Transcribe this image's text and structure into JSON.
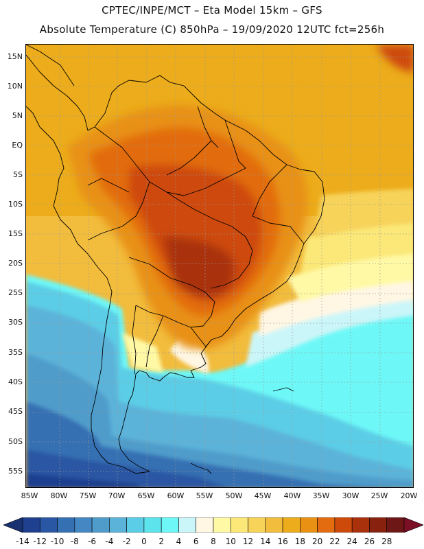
{
  "header": {
    "line1": "CPTEC/INPE/MCT –  Eta Model 15km – GFS",
    "line2": "Absolute Temperature (C) 850hPa – 19/09/2020 12UTC fct=256h"
  },
  "map": {
    "lat_labels": [
      "15N",
      "10N",
      "5N",
      "EQ",
      "5S",
      "10S",
      "15S",
      "20S",
      "25S",
      "30S",
      "35S",
      "40S",
      "45S",
      "50S",
      "55S"
    ],
    "lon_labels": [
      "85W",
      "80W",
      "75W",
      "70W",
      "65W",
      "60W",
      "55W",
      "50W",
      "45W",
      "40W",
      "35W",
      "30W",
      "25W",
      "20W"
    ]
  },
  "colorbar": {
    "labels": [
      "-14",
      "-12",
      "-10",
      "-8",
      "-6",
      "-4",
      "-2",
      "0",
      "2",
      "4",
      "6",
      "8",
      "10",
      "12",
      "14",
      "16",
      "18",
      "20",
      "22",
      "24",
      "26",
      "28"
    ],
    "colors": [
      "#1f3f8f",
      "#2a57a3",
      "#3570b3",
      "#4487c2",
      "#4f9ccb",
      "#5cb3d9",
      "#5ccde6",
      "#5de3ec",
      "#6df8f7",
      "#cbf6f9",
      "#fff7e4",
      "#fff9a6",
      "#fbe878",
      "#f7d35a",
      "#f2bc3d",
      "#ecac1b",
      "#e89112",
      "#e26c0f",
      "#cd4a0b",
      "#a9320c",
      "#88210e",
      "#6e1717"
    ],
    "under_color": "#173171",
    "over_color": "#7a0f25"
  }
}
